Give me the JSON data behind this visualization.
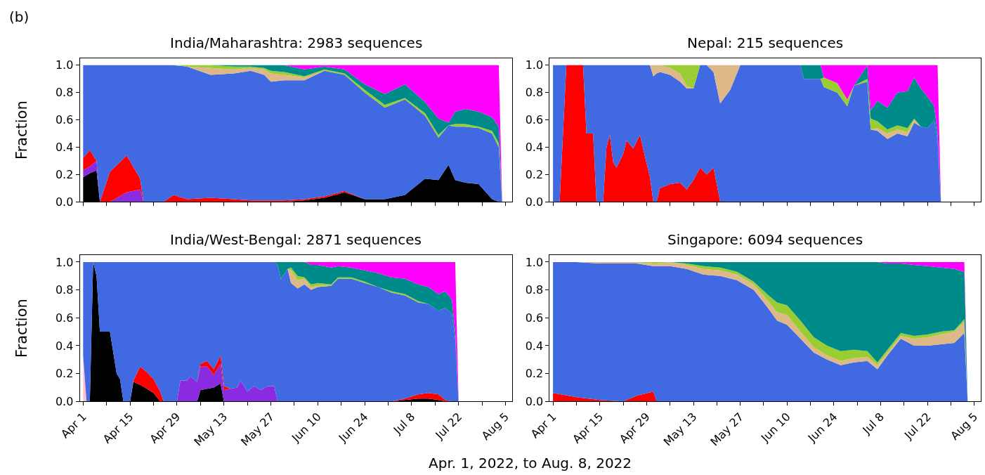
{
  "chart_data": [
    {
      "type": "area",
      "stacked": true,
      "title": "India/Maharashtra: 2983 sequences",
      "ylabel": "Fraction",
      "annotations": [
        "(b)"
      ],
      "tick_labels": "y",
      "x": [
        "2022-04-01",
        "2022-04-03",
        "2022-04-05",
        "2022-04-06",
        "2022-04-09",
        "2022-04-14",
        "2022-04-18",
        "2022-04-19",
        "2022-04-25",
        "2022-04-28",
        "2022-05-02",
        "2022-05-09",
        "2022-05-16",
        "2022-05-21",
        "2022-05-25",
        "2022-05-27",
        "2022-05-31",
        "2022-06-06",
        "2022-06-12",
        "2022-06-18",
        "2022-06-24",
        "2022-06-30",
        "2022-07-06",
        "2022-07-12",
        "2022-07-16",
        "2022-07-19",
        "2022-07-21",
        "2022-07-24",
        "2022-07-28",
        "2022-08-01",
        "2022-08-03",
        "2022-08-04"
      ],
      "series": [
        {
          "color": "#000000",
          "values": [
            0.18,
            0.21,
            0.23,
            0,
            null,
            null,
            null,
            null,
            null,
            null,
            null,
            null,
            null,
            null,
            null,
            null,
            0,
            0.01,
            0.03,
            0.07,
            0.02,
            0.02,
            0.05,
            0.17,
            0.16,
            0.27,
            0.16,
            0.14,
            0.13,
            0.02,
            0,
            null
          ]
        },
        {
          "color": "#8a2be2",
          "values": [
            0.05,
            0.05,
            0.07,
            0,
            0,
            0.07,
            0.09,
            0,
            null,
            null,
            null,
            null,
            null,
            null,
            null,
            null,
            null,
            null,
            null,
            null,
            null,
            null,
            null,
            null,
            null,
            null,
            null,
            null,
            null,
            null,
            null,
            null
          ]
        },
        {
          "color": "#ff0000",
          "values": [
            0.09,
            0.12,
            0,
            0,
            0.22,
            0.27,
            0.08,
            0,
            0,
            0.05,
            0.02,
            0.03,
            0.02,
            0.01,
            0.01,
            0.01,
            0.01,
            0.01,
            0.01,
            0.01,
            0,
            null,
            null,
            null,
            null,
            null,
            null,
            null,
            null,
            null,
            null,
            null
          ]
        },
        {
          "color": "#4169e1",
          "values": [
            0.68,
            0.62,
            0.7,
            1,
            0.78,
            0.66,
            0.83,
            1,
            1,
            0.95,
            0.97,
            0.9,
            0.92,
            0.95,
            0.92,
            0.87,
            0.88,
            0.87,
            0.92,
            0.85,
            0.78,
            0.67,
            0.7,
            0.46,
            0.31,
            0.29,
            0.39,
            0.41,
            0.41,
            0.48,
            0.4,
            0
          ]
        },
        {
          "color": "#deb887",
          "values": [
            null,
            null,
            null,
            null,
            null,
            null,
            null,
            null,
            null,
            null,
            0,
            0.05,
            0.03,
            0.02,
            0.04,
            0.06,
            0.04,
            0.02,
            0,
            null,
            null,
            null,
            null,
            null,
            null,
            null,
            null,
            null,
            null,
            null,
            null,
            null
          ]
        },
        {
          "color": "#9acd32",
          "values": [
            null,
            null,
            null,
            null,
            null,
            null,
            null,
            null,
            null,
            0,
            0.01,
            0.02,
            0.02,
            0.01,
            0.01,
            0.02,
            0.02,
            0.01,
            0.01,
            0.01,
            0.02,
            0.02,
            0.01,
            0.02,
            0.02,
            0,
            0.02,
            0.02,
            0.01,
            0.02,
            0.03,
            0
          ]
        },
        {
          "color": "#008b8b",
          "values": [
            null,
            null,
            null,
            null,
            null,
            null,
            null,
            null,
            null,
            null,
            null,
            0,
            0.01,
            0.01,
            0.02,
            0.04,
            0.05,
            0.05,
            0.02,
            0.03,
            0.04,
            0.08,
            0.1,
            0.08,
            0.12,
            0.02,
            0.09,
            0.11,
            0.11,
            0.1,
            0.12,
            0
          ]
        },
        {
          "color": "#ff00ff",
          "values": [
            null,
            null,
            null,
            null,
            null,
            null,
            null,
            null,
            null,
            null,
            null,
            null,
            null,
            null,
            null,
            null,
            0,
            0.03,
            0.01,
            0.03,
            0.14,
            0.21,
            0.14,
            0.27,
            0.39,
            0.42,
            0.34,
            0.32,
            0.34,
            0.38,
            0.45,
            0
          ]
        }
      ],
      "xlim": [
        "2022-03-31",
        "2022-08-07"
      ],
      "ylim": [
        0,
        1.05
      ],
      "xticks": [
        {
          "value": "2022-04-01",
          "label": null
        },
        {
          "value": "2022-04-08",
          "label": null
        },
        {
          "value": "2022-04-15",
          "label": null
        },
        {
          "value": "2022-04-22",
          "label": null
        },
        {
          "value": "2022-04-29",
          "label": null
        },
        {
          "value": "2022-05-06",
          "label": null
        },
        {
          "value": "2022-05-13",
          "label": null
        },
        {
          "value": "2022-05-20",
          "label": null
        },
        {
          "value": "2022-05-27",
          "label": null
        },
        {
          "value": "2022-06-03",
          "label": null
        },
        {
          "value": "2022-06-10",
          "label": null
        },
        {
          "value": "2022-06-17",
          "label": null
        },
        {
          "value": "2022-06-24",
          "label": null
        },
        {
          "value": "2022-07-01",
          "label": null
        },
        {
          "value": "2022-07-08",
          "label": null
        },
        {
          "value": "2022-07-15",
          "label": null
        },
        {
          "value": "2022-07-22",
          "label": null
        },
        {
          "value": "2022-07-29",
          "label": null
        },
        {
          "value": "2022-08-05",
          "label": null
        }
      ],
      "yticks": [
        {
          "value": 0,
          "label": "0.0"
        },
        {
          "value": 0.2,
          "label": "0.2"
        },
        {
          "value": 0.4,
          "label": "0.4"
        },
        {
          "value": 0.6,
          "label": "0.6"
        },
        {
          "value": 0.8,
          "label": "0.8"
        },
        {
          "value": 1,
          "label": "1.0"
        }
      ]
    },
    {
      "type": "area",
      "stacked": true,
      "title": "Nepal: 215 sequences",
      "tick_labels": "y",
      "x": [
        "2022-04-01",
        "2022-04-03",
        "2022-04-05",
        "2022-04-10",
        "2022-04-11",
        "2022-04-13",
        "2022-04-14",
        "2022-04-16",
        "2022-04-17",
        "2022-04-18",
        "2022-04-19",
        "2022-04-20",
        "2022-04-22",
        "2022-04-23",
        "2022-04-25",
        "2022-04-27",
        "2022-04-29",
        "2022-04-30",
        "2022-05-01",
        "2022-05-02",
        "2022-05-03",
        "2022-05-06",
        "2022-05-09",
        "2022-05-11",
        "2022-05-13",
        "2022-05-15",
        "2022-05-17",
        "2022-05-19",
        "2022-05-21",
        "2022-05-24",
        "2022-05-27",
        "2022-06-14",
        "2022-06-15",
        "2022-06-20",
        "2022-06-21",
        "2022-06-25",
        "2022-06-28",
        "2022-06-30",
        "2022-07-04",
        "2022-07-05",
        "2022-07-07",
        "2022-07-10",
        "2022-07-13",
        "2022-07-16",
        "2022-07-18",
        "2022-07-20",
        "2022-07-22",
        "2022-07-24",
        "2022-07-25",
        "2022-07-26"
      ],
      "series": [
        {
          "color": "#ff0000",
          "values": [
            null,
            0,
            1,
            1,
            0.5,
            0.5,
            0,
            0,
            0.4,
            0.49,
            0.29,
            0.25,
            0.35,
            0.45,
            0.39,
            0.49,
            0.28,
            0.18,
            0,
            0,
            0.1,
            0.13,
            0.14,
            0.09,
            0.16,
            0.25,
            0.2,
            0.25,
            0,
            null,
            null,
            null,
            null,
            null,
            null,
            null,
            null,
            null,
            null,
            null,
            null,
            null,
            null,
            null,
            null,
            null,
            null,
            null,
            null,
            null
          ]
        },
        {
          "color": "#4169e1",
          "values": [
            1,
            1,
            0,
            0,
            0.5,
            0.5,
            1,
            1,
            0.6,
            0.51,
            0.71,
            0.75,
            0.65,
            0.55,
            0.61,
            0.51,
            0.72,
            0.82,
            0.92,
            0.94,
            0.85,
            0.8,
            0.74,
            0.74,
            0.67,
            0.75,
            0.8,
            0.7,
            0.72,
            0.82,
            1,
            1,
            0.9,
            0.9,
            0.84,
            0.8,
            0.7,
            0.85,
            0.88,
            0.53,
            0.52,
            0.46,
            0.5,
            0.48,
            0.58,
            0.55,
            0.54,
            0.6,
            0.45,
            0
          ]
        },
        {
          "color": "#deb887",
          "values": [
            null,
            null,
            null,
            null,
            null,
            null,
            null,
            null,
            null,
            null,
            null,
            null,
            null,
            null,
            null,
            null,
            null,
            0,
            0.08,
            0.06,
            0.05,
            0.05,
            0.06,
            0.02,
            0,
            null,
            0,
            0.05,
            0.28,
            0.18,
            0,
            null,
            null,
            null,
            null,
            null,
            null,
            null,
            null,
            0,
            0.02,
            0.04,
            0.03,
            0.03,
            0.02,
            0,
            null,
            null,
            null,
            null
          ]
        },
        {
          "color": "#9acd32",
          "values": [
            null,
            null,
            null,
            null,
            null,
            null,
            null,
            null,
            null,
            null,
            null,
            null,
            null,
            null,
            null,
            null,
            null,
            null,
            null,
            null,
            0,
            0.02,
            0.06,
            0.15,
            0.17,
            0,
            null,
            null,
            null,
            null,
            null,
            null,
            null,
            0,
            0.07,
            0.07,
            0.05,
            0,
            0.02,
            0.08,
            0.05,
            0.03,
            0.03,
            0.03,
            0.01,
            0,
            null,
            null,
            null,
            null
          ]
        },
        {
          "color": "#008b8b",
          "values": [
            null,
            null,
            null,
            null,
            null,
            null,
            null,
            null,
            null,
            null,
            null,
            null,
            null,
            null,
            null,
            null,
            null,
            null,
            null,
            null,
            null,
            null,
            null,
            null,
            null,
            null,
            null,
            null,
            null,
            null,
            null,
            0,
            0.1,
            0.1,
            0,
            null,
            null,
            0,
            0.1,
            0.06,
            0.15,
            0.16,
            0.24,
            0.27,
            0.3,
            0.28,
            0.23,
            0.1,
            0.05,
            0
          ]
        },
        {
          "color": "#ff00ff",
          "values": [
            null,
            null,
            null,
            null,
            null,
            null,
            null,
            null,
            null,
            null,
            null,
            null,
            null,
            null,
            null,
            null,
            null,
            null,
            null,
            null,
            null,
            null,
            null,
            null,
            null,
            null,
            null,
            null,
            null,
            null,
            null,
            null,
            null,
            0,
            0.09,
            0.13,
            0.25,
            0.15,
            0,
            0.33,
            0.26,
            0.31,
            0.2,
            0.19,
            0.09,
            0.17,
            0.23,
            0.3,
            0.5,
            0
          ]
        }
      ],
      "xlim": [
        "2022-03-31",
        "2022-08-07"
      ],
      "ylim": [
        0,
        1.05
      ],
      "xticks": [
        {
          "value": "2022-04-01",
          "label": null
        },
        {
          "value": "2022-04-08",
          "label": null
        },
        {
          "value": "2022-04-15",
          "label": null
        },
        {
          "value": "2022-04-22",
          "label": null
        },
        {
          "value": "2022-04-29",
          "label": null
        },
        {
          "value": "2022-05-06",
          "label": null
        },
        {
          "value": "2022-05-13",
          "label": null
        },
        {
          "value": "2022-05-20",
          "label": null
        },
        {
          "value": "2022-05-27",
          "label": null
        },
        {
          "value": "2022-06-03",
          "label": null
        },
        {
          "value": "2022-06-10",
          "label": null
        },
        {
          "value": "2022-06-17",
          "label": null
        },
        {
          "value": "2022-06-24",
          "label": null
        },
        {
          "value": "2022-07-01",
          "label": null
        },
        {
          "value": "2022-07-08",
          "label": null
        },
        {
          "value": "2022-07-15",
          "label": null
        },
        {
          "value": "2022-07-22",
          "label": null
        },
        {
          "value": "2022-07-29",
          "label": null
        },
        {
          "value": "2022-08-05",
          "label": null
        }
      ],
      "yticks": [
        {
          "value": 0,
          "label": "0.0"
        },
        {
          "value": 0.2,
          "label": "0.2"
        },
        {
          "value": 0.4,
          "label": "0.4"
        },
        {
          "value": 0.6,
          "label": "0.6"
        },
        {
          "value": 0.8,
          "label": "0.8"
        },
        {
          "value": 1,
          "label": "1.0"
        }
      ]
    },
    {
      "type": "area",
      "stacked": true,
      "title": "India/West-Bengal: 2871 sequences",
      "ylabel": "Fraction",
      "annotations": [
        "Apr. 1, 2022, to Aug. 8, 2022"
      ],
      "x": [
        "2022-04-01",
        "2022-04-02",
        "2022-04-03",
        "2022-04-04",
        "2022-04-05",
        "2022-04-06",
        "2022-04-09",
        "2022-04-11",
        "2022-04-12",
        "2022-04-13",
        "2022-04-15",
        "2022-04-16",
        "2022-04-18",
        "2022-04-20",
        "2022-04-22",
        "2022-04-24",
        "2022-04-25",
        "2022-04-29",
        "2022-04-30",
        "2022-05-02",
        "2022-05-03",
        "2022-05-05",
        "2022-05-06",
        "2022-05-08",
        "2022-05-10",
        "2022-05-12",
        "2022-05-13",
        "2022-05-15",
        "2022-05-17",
        "2022-05-18",
        "2022-05-20",
        "2022-05-22",
        "2022-05-24",
        "2022-05-26",
        "2022-05-28",
        "2022-05-29",
        "2022-05-30",
        "2022-06-01",
        "2022-06-02",
        "2022-06-04",
        "2022-06-06",
        "2022-06-08",
        "2022-06-10",
        "2022-06-14",
        "2022-06-16",
        "2022-06-20",
        "2022-06-24",
        "2022-06-28",
        "2022-07-02",
        "2022-07-06",
        "2022-07-10",
        "2022-07-13",
        "2022-07-16",
        "2022-07-18",
        "2022-07-20",
        "2022-07-21",
        "2022-07-22"
      ],
      "series": [
        {
          "color": "#000000",
          "values": [
            null,
            null,
            0,
            1,
            0.9,
            0.5,
            0.5,
            0.2,
            0.16,
            0,
            0,
            0.14,
            0.12,
            0.09,
            0.06,
            0,
            null,
            null,
            null,
            null,
            null,
            0,
            0.08,
            0.09,
            0.1,
            0.13,
            0,
            null,
            null,
            null,
            null,
            null,
            null,
            null,
            null,
            null,
            null,
            null,
            null,
            null,
            null,
            null,
            null,
            null,
            null,
            null,
            null,
            null,
            0,
            0.01,
            0.02,
            0.02,
            0.01,
            0,
            null,
            null,
            null
          ]
        },
        {
          "color": "#8a2be2",
          "values": [
            null,
            null,
            null,
            null,
            null,
            null,
            null,
            null,
            null,
            null,
            null,
            null,
            null,
            null,
            null,
            null,
            null,
            0,
            0.15,
            0.15,
            0.18,
            0.14,
            0.17,
            0.16,
            0.09,
            0.14,
            0.08,
            0.09,
            0.1,
            0.15,
            0.07,
            0.11,
            0.08,
            0.11,
            0.11,
            0,
            null,
            null,
            null,
            null,
            null,
            null,
            null,
            null,
            null,
            null,
            null,
            null,
            null,
            null,
            null,
            null,
            null,
            null,
            null,
            null,
            null
          ]
        },
        {
          "color": "#ff0000",
          "values": [
            null,
            null,
            null,
            null,
            null,
            null,
            null,
            null,
            null,
            null,
            0,
            0.01,
            0.13,
            0.12,
            0.1,
            0.07,
            0,
            null,
            null,
            null,
            null,
            0,
            0.02,
            0.04,
            0.04,
            0.06,
            0.03,
            0,
            null,
            null,
            null,
            null,
            null,
            null,
            null,
            null,
            null,
            null,
            null,
            null,
            null,
            null,
            null,
            null,
            null,
            null,
            null,
            null,
            0,
            0.01,
            0.03,
            0.04,
            0.04,
            0.01,
            0,
            null,
            null
          ]
        },
        {
          "color": "#ffc0cb",
          "values": [
            0.33,
            0,
            null,
            null,
            null,
            null,
            null,
            null,
            null,
            null,
            null,
            null,
            null,
            null,
            null,
            null,
            null,
            null,
            null,
            null,
            null,
            null,
            null,
            null,
            null,
            null,
            null,
            null,
            null,
            null,
            null,
            null,
            null,
            null,
            null,
            null,
            null,
            null,
            null,
            null,
            null,
            null,
            null,
            null,
            null,
            null,
            null,
            null,
            null,
            null,
            null,
            null,
            null,
            null,
            null,
            null,
            null
          ]
        },
        {
          "color": "#4169e1",
          "values": [
            0.67,
            1,
            1,
            0,
            0.1,
            0.5,
            0.5,
            0.8,
            0.84,
            1,
            1,
            0.85,
            0.75,
            0.79,
            0.84,
            0.93,
            1,
            1,
            0.85,
            0.85,
            0.82,
            0.86,
            0.73,
            0.71,
            0.77,
            0.67,
            0.89,
            0.91,
            0.9,
            0.85,
            0.93,
            0.89,
            0.92,
            0.89,
            0.89,
            0.98,
            0.88,
            0.95,
            0.85,
            0.81,
            0.84,
            0.8,
            0.82,
            0.83,
            0.88,
            0.88,
            0.85,
            0.82,
            0.78,
            0.74,
            0.66,
            0.64,
            0.6,
            0.66,
            0.63,
            0.45,
            0
          ]
        },
        {
          "color": "#deb887",
          "values": [
            null,
            null,
            null,
            null,
            null,
            null,
            null,
            null,
            null,
            null,
            null,
            null,
            null,
            null,
            null,
            null,
            null,
            null,
            null,
            null,
            null,
            null,
            null,
            null,
            null,
            null,
            null,
            null,
            null,
            null,
            null,
            null,
            null,
            null,
            null,
            null,
            null,
            0,
            0.09,
            0.06,
            0.04,
            0.02,
            0.01,
            0,
            null,
            null,
            null,
            null,
            null,
            null,
            null,
            null,
            null,
            null,
            null,
            null,
            null
          ]
        },
        {
          "color": "#9acd32",
          "values": [
            null,
            null,
            null,
            null,
            null,
            null,
            null,
            null,
            null,
            null,
            null,
            null,
            null,
            null,
            null,
            null,
            null,
            null,
            null,
            null,
            null,
            null,
            null,
            null,
            null,
            null,
            null,
            null,
            null,
            null,
            null,
            null,
            null,
            null,
            null,
            null,
            null,
            0,
            0.02,
            0.03,
            0.01,
            0.02,
            0.02,
            0.01,
            0.01,
            0.01,
            0.01,
            0,
            0.01,
            0.01,
            0.01,
            0,
            null,
            null,
            null,
            null,
            null
          ]
        },
        {
          "color": "#008b8b",
          "values": [
            null,
            null,
            null,
            null,
            null,
            null,
            null,
            null,
            null,
            null,
            null,
            null,
            null,
            null,
            null,
            null,
            null,
            null,
            null,
            null,
            null,
            null,
            null,
            null,
            null,
            null,
            null,
            null,
            null,
            null,
            null,
            null,
            null,
            null,
            0,
            0.02,
            0.12,
            0.05,
            0.04,
            0.1,
            0.11,
            0.14,
            0.13,
            0.12,
            0.08,
            0.07,
            0.08,
            0.1,
            0.1,
            0.11,
            0.12,
            0.12,
            0.12,
            0.12,
            0.1,
            0.05,
            0
          ]
        },
        {
          "color": "#ff00ff",
          "values": [
            null,
            null,
            null,
            null,
            null,
            null,
            null,
            null,
            null,
            null,
            null,
            null,
            null,
            null,
            null,
            null,
            null,
            null,
            null,
            null,
            null,
            null,
            null,
            null,
            null,
            null,
            null,
            null,
            null,
            null,
            null,
            null,
            null,
            null,
            null,
            null,
            null,
            null,
            null,
            null,
            0,
            0.02,
            0.02,
            0.04,
            0.03,
            0.04,
            0.06,
            0.08,
            0.11,
            0.12,
            0.16,
            0.18,
            0.23,
            0.21,
            0.27,
            0.5,
            0
          ]
        }
      ],
      "xlim": [
        "2022-03-31",
        "2022-08-07"
      ],
      "ylim": [
        0,
        1.05
      ],
      "xticks": [
        {
          "value": "2022-04-01",
          "label": "Apr 1"
        },
        {
          "value": "2022-04-08",
          "label": null
        },
        {
          "value": "2022-04-15",
          "label": "Apr 15"
        },
        {
          "value": "2022-04-22",
          "label": null
        },
        {
          "value": "2022-04-29",
          "label": "Apr 29"
        },
        {
          "value": "2022-05-06",
          "label": null
        },
        {
          "value": "2022-05-13",
          "label": "May 13"
        },
        {
          "value": "2022-05-20",
          "label": null
        },
        {
          "value": "2022-05-27",
          "label": "May 27"
        },
        {
          "value": "2022-06-03",
          "label": null
        },
        {
          "value": "2022-06-10",
          "label": "Jun 10"
        },
        {
          "value": "2022-06-17",
          "label": null
        },
        {
          "value": "2022-06-24",
          "label": "Jun 24"
        },
        {
          "value": "2022-07-01",
          "label": null
        },
        {
          "value": "2022-07-08",
          "label": "Jul 8"
        },
        {
          "value": "2022-07-15",
          "label": null
        },
        {
          "value": "2022-07-22",
          "label": "Jul 22"
        },
        {
          "value": "2022-07-29",
          "label": null
        },
        {
          "value": "2022-08-05",
          "label": "Aug 5"
        }
      ],
      "yticks": [
        {
          "value": 0,
          "label": "0.0"
        },
        {
          "value": 0.2,
          "label": "0.2"
        },
        {
          "value": 0.4,
          "label": "0.4"
        },
        {
          "value": 0.6,
          "label": "0.6"
        },
        {
          "value": 0.8,
          "label": "0.8"
        },
        {
          "value": 1,
          "label": "1.0"
        }
      ]
    },
    {
      "type": "area",
      "stacked": true,
      "title": "Singapore: 6094 sequences",
      "x": [
        "2022-04-01",
        "2022-04-08",
        "2022-04-15",
        "2022-04-22",
        "2022-04-26",
        "2022-05-01",
        "2022-05-02",
        "2022-05-06",
        "2022-05-11",
        "2022-05-16",
        "2022-05-21",
        "2022-05-26",
        "2022-05-31",
        "2022-06-04",
        "2022-06-07",
        "2022-06-10",
        "2022-06-14",
        "2022-06-18",
        "2022-06-22",
        "2022-06-26",
        "2022-06-30",
        "2022-07-04",
        "2022-07-07",
        "2022-07-10",
        "2022-07-14",
        "2022-07-18",
        "2022-07-22",
        "2022-07-26",
        "2022-07-30",
        "2022-08-02",
        "2022-08-03"
      ],
      "series": [
        {
          "color": "#ff0000",
          "values": [
            0.06,
            0.03,
            0.01,
            0,
            0.04,
            0.07,
            0,
            null,
            null,
            null,
            null,
            null,
            null,
            null,
            null,
            null,
            null,
            null,
            null,
            null,
            null,
            null,
            null,
            null,
            null,
            null,
            null,
            null,
            null,
            null,
            null
          ]
        },
        {
          "color": "#4169e1",
          "values": [
            0.94,
            0.97,
            0.98,
            0.99,
            0.95,
            0.9,
            0.97,
            0.97,
            0.95,
            0.91,
            0.9,
            0.87,
            0.8,
            0.68,
            0.58,
            0.55,
            0.45,
            0.35,
            0.3,
            0.26,
            0.28,
            0.29,
            0.23,
            0.33,
            0.45,
            0.4,
            0.4,
            0.41,
            0.42,
            0.49,
            0
          ]
        },
        {
          "color": "#deb887",
          "values": [
            null,
            0,
            0.01,
            0.01,
            0.01,
            0.02,
            0.02,
            0.03,
            0.03,
            0.04,
            0.04,
            0.04,
            0.04,
            0.05,
            0.06,
            0.07,
            0.05,
            0.04,
            0.03,
            0.03,
            0.03,
            0.03,
            0.03,
            0.02,
            0.02,
            0.05,
            0.06,
            0.07,
            0.08,
            0.08,
            0
          ]
        },
        {
          "color": "#9acd32",
          "values": [
            null,
            null,
            null,
            null,
            0,
            0.01,
            0.01,
            0,
            0.01,
            0.02,
            0.02,
            0.02,
            0.02,
            0.04,
            0.07,
            0.07,
            0.08,
            0.07,
            0.07,
            0.07,
            0.06,
            0.04,
            0.02,
            0.02,
            0.02,
            0.02,
            0.02,
            0.02,
            0.01,
            0.02,
            0
          ]
        },
        {
          "color": "#008b8b",
          "values": [
            null,
            null,
            null,
            null,
            null,
            null,
            null,
            0,
            0.01,
            0.03,
            0.04,
            0.07,
            0.14,
            0.23,
            0.29,
            0.31,
            0.42,
            0.54,
            0.6,
            0.64,
            0.63,
            0.64,
            0.72,
            0.62,
            0.5,
            0.51,
            0.49,
            0.46,
            0.44,
            0.34,
            0
          ]
        },
        {
          "color": "#ff00ff",
          "values": [
            null,
            null,
            null,
            null,
            null,
            null,
            null,
            null,
            null,
            null,
            null,
            null,
            null,
            null,
            null,
            null,
            null,
            null,
            null,
            null,
            null,
            null,
            0,
            0.01,
            0.01,
            0.02,
            0.03,
            0.04,
            0.05,
            0.07,
            0
          ]
        }
      ],
      "xlim": [
        "2022-03-31",
        "2022-08-07"
      ],
      "ylim": [
        0,
        1.05
      ],
      "xticks": [
        {
          "value": "2022-04-01",
          "label": "Apr 1"
        },
        {
          "value": "2022-04-08",
          "label": null
        },
        {
          "value": "2022-04-15",
          "label": "Apr 15"
        },
        {
          "value": "2022-04-22",
          "label": null
        },
        {
          "value": "2022-04-29",
          "label": "Apr 29"
        },
        {
          "value": "2022-05-06",
          "label": null
        },
        {
          "value": "2022-05-13",
          "label": "May 13"
        },
        {
          "value": "2022-05-20",
          "label": null
        },
        {
          "value": "2022-05-27",
          "label": "May 27"
        },
        {
          "value": "2022-06-03",
          "label": null
        },
        {
          "value": "2022-06-10",
          "label": "Jun 10"
        },
        {
          "value": "2022-06-17",
          "label": null
        },
        {
          "value": "2022-06-24",
          "label": "Jun 24"
        },
        {
          "value": "2022-07-01",
          "label": null
        },
        {
          "value": "2022-07-08",
          "label": "Jul 8"
        },
        {
          "value": "2022-07-15",
          "label": null
        },
        {
          "value": "2022-07-22",
          "label": "Jul 22"
        },
        {
          "value": "2022-07-29",
          "label": null
        },
        {
          "value": "2022-08-05",
          "label": "Aug 5"
        }
      ],
      "yticks": [
        {
          "value": 0,
          "label": "0.0"
        },
        {
          "value": 0.2,
          "label": "0.2"
        },
        {
          "value": 0.4,
          "label": "0.4"
        },
        {
          "value": 0.6,
          "label": "0.6"
        },
        {
          "value": 0.8,
          "label": "0.8"
        },
        {
          "value": 1,
          "label": "1.0"
        }
      ]
    }
  ]
}
